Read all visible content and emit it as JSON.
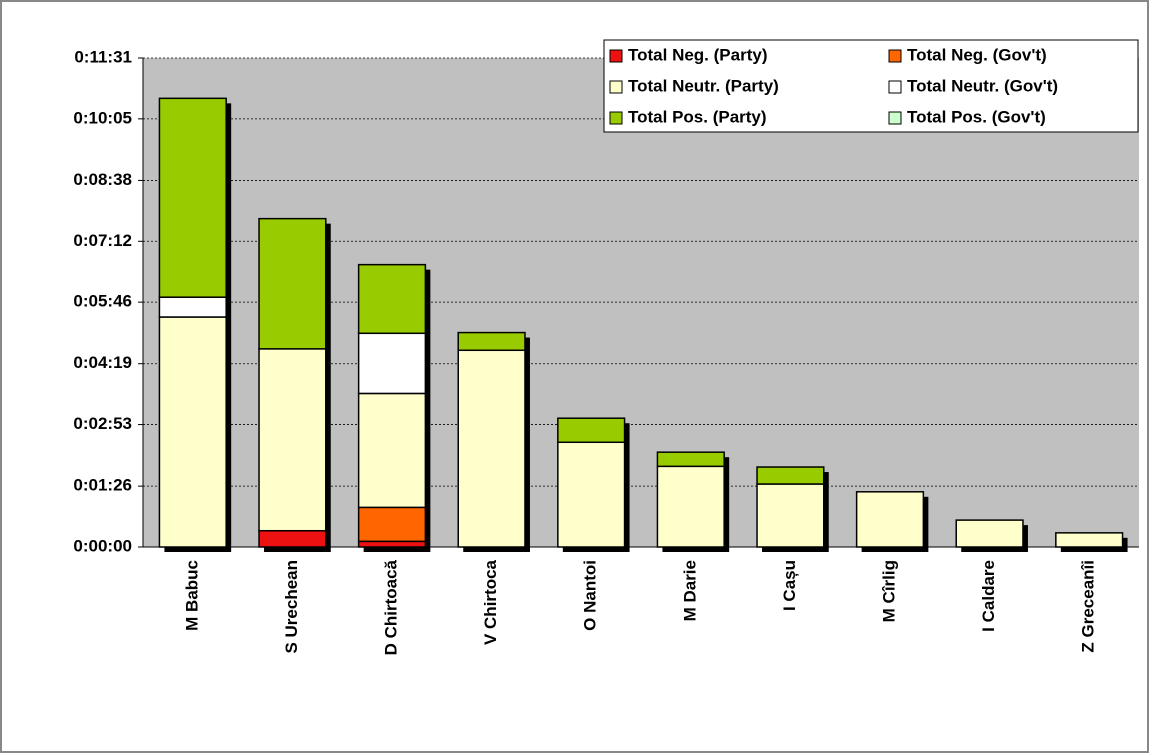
{
  "chart_data": {
    "type": "bar",
    "stacked": true,
    "categories": [
      "M Babuc",
      "S Urechean",
      "D Chirtoacă",
      "V Chirtoca",
      "O Nantoi",
      "M Darie",
      "I Cașu",
      "M Cîrlig",
      "I Caldare",
      "Z Greceanîi"
    ],
    "series": [
      {
        "name": "Total Neg. (Party)",
        "color": "#ee1111",
        "values": [
          0,
          23,
          8,
          0,
          0,
          0,
          0,
          0,
          0,
          0
        ]
      },
      {
        "name": "Total Neg. (Gov't)",
        "color": "#ff6600",
        "values": [
          0,
          0,
          48,
          0,
          0,
          0,
          0,
          0,
          0,
          0
        ]
      },
      {
        "name": "Total Neutr. (Party)",
        "color": "#ffffcc",
        "values": [
          325,
          257,
          161,
          278,
          148,
          114,
          89,
          78,
          38,
          20
        ]
      },
      {
        "name": "Total Neutr. (Gov't)",
        "color": "#ffffff",
        "values": [
          28,
          0,
          85,
          0,
          0,
          0,
          0,
          0,
          0,
          0
        ]
      },
      {
        "name": "Total Pos. (Party)",
        "color": "#99cc00",
        "values": [
          281,
          184,
          97,
          25,
          34,
          20,
          24,
          0,
          0,
          0
        ]
      },
      {
        "name": "Total Pos. (Gov't)",
        "color": "#ccffcc",
        "values": [
          0,
          0,
          0,
          0,
          0,
          0,
          0,
          0,
          0,
          0
        ]
      }
    ],
    "ylim": [
      0,
      691
    ],
    "yticks": [
      {
        "value": 0,
        "label": "0:00:00"
      },
      {
        "value": 86,
        "label": "0:01:26"
      },
      {
        "value": 173,
        "label": "0:02:53"
      },
      {
        "value": 259,
        "label": "0:04:19"
      },
      {
        "value": 346,
        "label": "0:05:46"
      },
      {
        "value": 432,
        "label": "0:07:12"
      },
      {
        "value": 518,
        "label": "0:08:38"
      },
      {
        "value": 605,
        "label": "0:10:05"
      },
      {
        "value": 691,
        "label": "0:11:31"
      }
    ],
    "grid": true,
    "legend": "top-right"
  }
}
